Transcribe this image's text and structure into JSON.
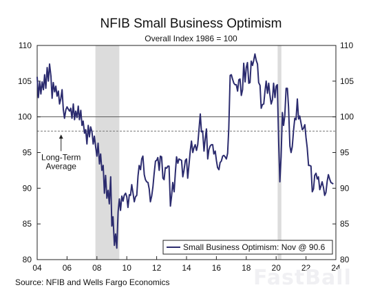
{
  "chart_data": {
    "type": "line",
    "title": "NFIB Small Business Optimism",
    "subtitle": "Overall Index 1986 = 100",
    "source": "Source: NFIB and Wells Fargo Economics",
    "watermark": "FastBall",
    "xlim": [
      2004,
      2024
    ],
    "ylim": [
      80,
      110
    ],
    "x_ticks": [
      {
        "value": 2004,
        "label": "04"
      },
      {
        "value": 2006,
        "label": "06"
      },
      {
        "value": 2008,
        "label": "08"
      },
      {
        "value": 2010,
        "label": "10"
      },
      {
        "value": 2012,
        "label": "12"
      },
      {
        "value": 2014,
        "label": "14"
      },
      {
        "value": 2016,
        "label": "16"
      },
      {
        "value": 2018,
        "label": "18"
      },
      {
        "value": 2020,
        "label": "20"
      },
      {
        "value": 2022,
        "label": "22"
      },
      {
        "value": 2024,
        "label": "24"
      }
    ],
    "y_ticks": [
      80,
      85,
      90,
      95,
      100,
      105,
      110
    ],
    "recessions": [
      [
        2007.9,
        2009.5
      ],
      [
        2020.1,
        2020.35
      ]
    ],
    "reference_lines": [
      {
        "value": 100,
        "style": "solid"
      },
      {
        "value": 98,
        "style": "dashed"
      }
    ],
    "annotation": {
      "lines": [
        "Long-Term",
        "Average"
      ],
      "x": 2005.6,
      "y": 98
    },
    "legend": {
      "label": "Small Business Optimism: Nov @ 90.6",
      "placement": "bottom-right"
    },
    "series": [
      {
        "name": "Small Business Optimism: Nov @ 90.6",
        "color": "#2b2b6e",
        "points": [
          [
            2004.0,
            105.6
          ],
          [
            2004.08,
            102.7
          ],
          [
            2004.17,
            104.9
          ],
          [
            2004.25,
            103.2
          ],
          [
            2004.33,
            104.9
          ],
          [
            2004.42,
            103.8
          ],
          [
            2004.5,
            105.9
          ],
          [
            2004.58,
            104.0
          ],
          [
            2004.67,
            106.9
          ],
          [
            2004.75,
            105.0
          ],
          [
            2004.83,
            107.4
          ],
          [
            2004.92,
            105.7
          ],
          [
            2005.0,
            102.6
          ],
          [
            2005.08,
            104.8
          ],
          [
            2005.17,
            103.5
          ],
          [
            2005.25,
            104.3
          ],
          [
            2005.33,
            102.9
          ],
          [
            2005.42,
            103.6
          ],
          [
            2005.5,
            101.8
          ],
          [
            2005.58,
            102.5
          ],
          [
            2005.67,
            103.8
          ],
          [
            2005.75,
            101.0
          ],
          [
            2005.83,
            99.8
          ],
          [
            2005.92,
            101.0
          ],
          [
            2006.0,
            101.4
          ],
          [
            2006.08,
            101.1
          ],
          [
            2006.17,
            100.8
          ],
          [
            2006.25,
            101.2
          ],
          [
            2006.33,
            99.8
          ],
          [
            2006.42,
            101.8
          ],
          [
            2006.5,
            99.6
          ],
          [
            2006.58,
            100.8
          ],
          [
            2006.67,
            99.9
          ],
          [
            2006.75,
            101.5
          ],
          [
            2006.83,
            99.6
          ],
          [
            2006.92,
            100.9
          ],
          [
            2007.0,
            98.8
          ],
          [
            2007.08,
            99.4
          ],
          [
            2007.17,
            97.7
          ],
          [
            2007.25,
            98.2
          ],
          [
            2007.33,
            96.2
          ],
          [
            2007.42,
            98.8
          ],
          [
            2007.5,
            97.2
          ],
          [
            2007.58,
            98.6
          ],
          [
            2007.67,
            97.9
          ],
          [
            2007.75,
            96.2
          ],
          [
            2007.83,
            97.3
          ],
          [
            2007.92,
            95.7
          ],
          [
            2008.0,
            94.5
          ],
          [
            2008.08,
            96.3
          ],
          [
            2008.17,
            93.4
          ],
          [
            2008.25,
            94.8
          ],
          [
            2008.33,
            92.5
          ],
          [
            2008.42,
            93.2
          ],
          [
            2008.5,
            89.3
          ],
          [
            2008.58,
            91.8
          ],
          [
            2008.67,
            88.6
          ],
          [
            2008.75,
            89.7
          ],
          [
            2008.83,
            87.8
          ],
          [
            2008.92,
            91.6
          ],
          [
            2009.0,
            84.7
          ],
          [
            2009.08,
            86.0
          ],
          [
            2009.17,
            82.0
          ],
          [
            2009.25,
            83.6
          ],
          [
            2009.33,
            81.6
          ],
          [
            2009.42,
            86.7
          ],
          [
            2009.5,
            88.5
          ],
          [
            2009.58,
            86.9
          ],
          [
            2009.67,
            88.9
          ],
          [
            2009.75,
            88.2
          ],
          [
            2009.83,
            89.0
          ],
          [
            2009.92,
            89.3
          ],
          [
            2010.0,
            88.8
          ],
          [
            2010.08,
            87.3
          ],
          [
            2010.17,
            89.1
          ],
          [
            2010.25,
            89.0
          ],
          [
            2010.33,
            90.5
          ],
          [
            2010.42,
            89.3
          ],
          [
            2010.5,
            88.1
          ],
          [
            2010.58,
            88.8
          ],
          [
            2010.67,
            89.0
          ],
          [
            2010.75,
            91.7
          ],
          [
            2010.83,
            93.2
          ],
          [
            2010.92,
            92.6
          ],
          [
            2011.0,
            94.1
          ],
          [
            2011.08,
            94.5
          ],
          [
            2011.17,
            91.9
          ],
          [
            2011.25,
            91.2
          ],
          [
            2011.33,
            90.9
          ],
          [
            2011.42,
            90.8
          ],
          [
            2011.5,
            89.9
          ],
          [
            2011.58,
            88.1
          ],
          [
            2011.67,
            88.9
          ],
          [
            2011.75,
            90.2
          ],
          [
            2011.83,
            92.0
          ],
          [
            2011.92,
            93.8
          ],
          [
            2012.0,
            93.9
          ],
          [
            2012.08,
            94.3
          ],
          [
            2012.17,
            92.5
          ],
          [
            2012.25,
            94.5
          ],
          [
            2012.33,
            94.4
          ],
          [
            2012.42,
            91.4
          ],
          [
            2012.5,
            91.2
          ],
          [
            2012.58,
            92.9
          ],
          [
            2012.67,
            92.8
          ],
          [
            2012.75,
            93.1
          ],
          [
            2012.83,
            93.1
          ],
          [
            2012.92,
            87.5
          ],
          [
            2013.0,
            88.9
          ],
          [
            2013.08,
            90.8
          ],
          [
            2013.17,
            89.5
          ],
          [
            2013.25,
            92.1
          ],
          [
            2013.33,
            94.4
          ],
          [
            2013.42,
            93.5
          ],
          [
            2013.5,
            94.1
          ],
          [
            2013.58,
            94.0
          ],
          [
            2013.67,
            93.9
          ],
          [
            2013.75,
            91.6
          ],
          [
            2013.83,
            92.5
          ],
          [
            2013.92,
            93.9
          ],
          [
            2014.0,
            94.1
          ],
          [
            2014.08,
            91.4
          ],
          [
            2014.17,
            93.4
          ],
          [
            2014.25,
            95.2
          ],
          [
            2014.33,
            96.6
          ],
          [
            2014.42,
            95.0
          ],
          [
            2014.5,
            95.7
          ],
          [
            2014.58,
            96.1
          ],
          [
            2014.67,
            95.3
          ],
          [
            2014.75,
            96.1
          ],
          [
            2014.83,
            98.1
          ],
          [
            2014.92,
            100.4
          ],
          [
            2015.0,
            97.9
          ],
          [
            2015.08,
            98.0
          ],
          [
            2015.17,
            95.2
          ],
          [
            2015.25,
            96.9
          ],
          [
            2015.33,
            98.3
          ],
          [
            2015.42,
            94.1
          ],
          [
            2015.5,
            95.4
          ],
          [
            2015.58,
            95.9
          ],
          [
            2015.67,
            96.1
          ],
          [
            2015.75,
            96.1
          ],
          [
            2015.83,
            94.8
          ],
          [
            2015.92,
            95.2
          ],
          [
            2016.0,
            93.9
          ],
          [
            2016.08,
            92.9
          ],
          [
            2016.17,
            92.6
          ],
          [
            2016.25,
            93.6
          ],
          [
            2016.33,
            93.8
          ],
          [
            2016.42,
            94.5
          ],
          [
            2016.5,
            94.6
          ],
          [
            2016.58,
            94.4
          ],
          [
            2016.67,
            94.1
          ],
          [
            2016.75,
            94.9
          ],
          [
            2016.83,
            98.4
          ],
          [
            2016.92,
            105.8
          ],
          [
            2017.0,
            105.9
          ],
          [
            2017.08,
            105.3
          ],
          [
            2017.17,
            104.7
          ],
          [
            2017.25,
            104.5
          ],
          [
            2017.33,
            104.5
          ],
          [
            2017.42,
            103.6
          ],
          [
            2017.5,
            105.2
          ],
          [
            2017.58,
            105.3
          ],
          [
            2017.67,
            103.0
          ],
          [
            2017.75,
            103.8
          ],
          [
            2017.83,
            107.5
          ],
          [
            2017.92,
            104.9
          ],
          [
            2018.0,
            106.9
          ],
          [
            2018.08,
            107.6
          ],
          [
            2018.17,
            104.7
          ],
          [
            2018.25,
            104.8
          ],
          [
            2018.33,
            107.8
          ],
          [
            2018.42,
            107.2
          ],
          [
            2018.5,
            107.9
          ],
          [
            2018.58,
            108.8
          ],
          [
            2018.67,
            107.9
          ],
          [
            2018.75,
            107.4
          ],
          [
            2018.83,
            104.8
          ],
          [
            2018.92,
            104.4
          ],
          [
            2019.0,
            101.2
          ],
          [
            2019.08,
            101.7
          ],
          [
            2019.17,
            101.8
          ],
          [
            2019.25,
            103.5
          ],
          [
            2019.33,
            105.0
          ],
          [
            2019.42,
            103.3
          ],
          [
            2019.5,
            104.7
          ],
          [
            2019.58,
            103.1
          ],
          [
            2019.67,
            101.8
          ],
          [
            2019.75,
            102.4
          ],
          [
            2019.83,
            104.7
          ],
          [
            2019.92,
            102.7
          ],
          [
            2020.0,
            104.3
          ],
          [
            2020.08,
            104.5
          ],
          [
            2020.17,
            96.4
          ],
          [
            2020.25,
            90.9
          ],
          [
            2020.33,
            94.4
          ],
          [
            2020.42,
            100.6
          ],
          [
            2020.5,
            98.8
          ],
          [
            2020.58,
            100.2
          ],
          [
            2020.67,
            104.0
          ],
          [
            2020.75,
            104.0
          ],
          [
            2020.83,
            101.4
          ],
          [
            2020.92,
            95.9
          ],
          [
            2021.0,
            95.0
          ],
          [
            2021.08,
            95.8
          ],
          [
            2021.17,
            98.2
          ],
          [
            2021.25,
            99.8
          ],
          [
            2021.33,
            99.6
          ],
          [
            2021.42,
            102.5
          ],
          [
            2021.5,
            99.7
          ],
          [
            2021.58,
            100.1
          ],
          [
            2021.67,
            99.1
          ],
          [
            2021.75,
            98.2
          ],
          [
            2021.83,
            98.4
          ],
          [
            2021.92,
            98.9
          ],
          [
            2022.0,
            97.1
          ],
          [
            2022.08,
            95.7
          ],
          [
            2022.17,
            93.2
          ],
          [
            2022.25,
            93.2
          ],
          [
            2022.33,
            93.1
          ],
          [
            2022.42,
            89.5
          ],
          [
            2022.5,
            89.9
          ],
          [
            2022.58,
            91.8
          ],
          [
            2022.67,
            92.1
          ],
          [
            2022.75,
            91.3
          ],
          [
            2022.83,
            91.6
          ],
          [
            2022.92,
            89.8
          ],
          [
            2023.0,
            90.3
          ],
          [
            2023.08,
            90.9
          ],
          [
            2023.17,
            90.1
          ],
          [
            2023.25,
            89.0
          ],
          [
            2023.33,
            89.4
          ],
          [
            2023.42,
            91.0
          ],
          [
            2023.5,
            91.9
          ],
          [
            2023.58,
            91.3
          ],
          [
            2023.67,
            90.8
          ],
          [
            2023.75,
            90.7
          ],
          [
            2023.83,
            90.6
          ]
        ]
      }
    ]
  }
}
